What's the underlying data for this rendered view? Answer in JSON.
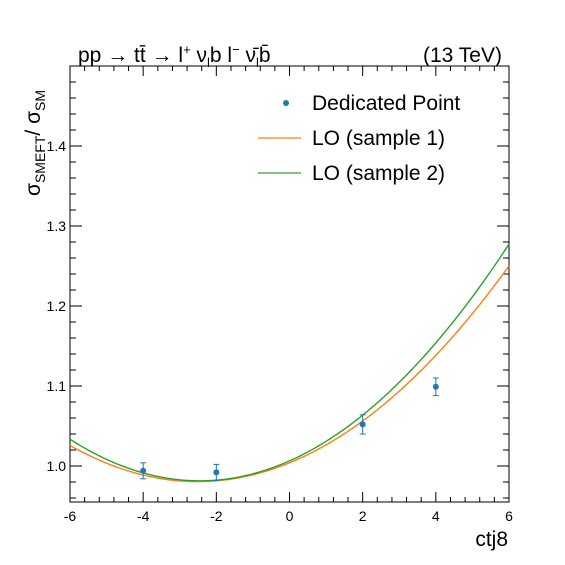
{
  "chart_data": {
    "type": "scatter",
    "header_left": "pp → t t̄ → l⁺ νₗ b  l⁻ ν̄ₗ b̄",
    "header_right": "(13 TeV)",
    "xlabel": "ctj8",
    "ylabel": "σSMEFT / σSM",
    "xlim": [
      -6,
      6
    ],
    "ylim": [
      0.955,
      1.5
    ],
    "xticks": [
      -6,
      -4,
      -2,
      0,
      2,
      4,
      6
    ],
    "xtick_labels": [
      "-6",
      "-4",
      "-2",
      "0",
      "2",
      "4",
      "6"
    ],
    "yticks": [
      1.0,
      1.1,
      1.2,
      1.3,
      1.4
    ],
    "ytick_labels": [
      "1.0",
      "1.1",
      "1.2",
      "1.3",
      "1.4"
    ],
    "points": {
      "name": "Dedicated Point",
      "color": "#1f77b4",
      "x": [
        -4,
        -2,
        2,
        4
      ],
      "y": [
        0.994,
        0.992,
        1.052,
        1.099
      ],
      "err": [
        0.01,
        0.01,
        0.012,
        0.011
      ]
    },
    "curves": [
      {
        "name": "LO (sample 1)",
        "color": "#ff7f0e",
        "quad": 0.00372,
        "lin": 0.0187,
        "const": 1.004
      },
      {
        "name": "LO (sample 2)",
        "color": "#2ca02c",
        "quad": 0.00414,
        "lin": 0.02032,
        "const": 1.0064
      }
    ],
    "legend": [
      "Dedicated Point",
      "LO (sample 1)",
      "LO (sample 2)"
    ],
    "legend_position": "top-right",
    "grid": false
  }
}
